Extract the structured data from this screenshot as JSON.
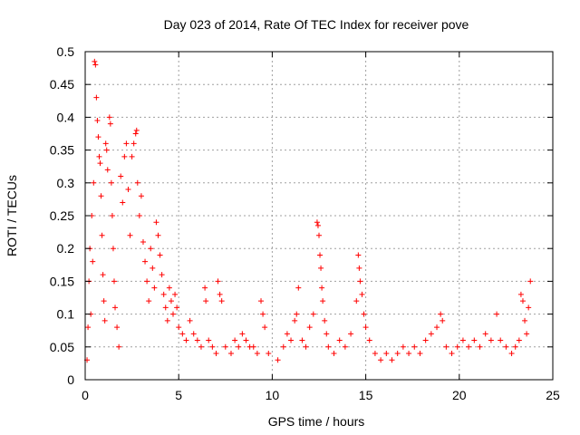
{
  "chart_data": {
    "type": "scatter",
    "title": "Day 023 of 2014, Rate Of TEC Index for receiver pove",
    "xlabel": "GPS time / hours",
    "ylabel": "ROTI / TECUs",
    "xlim": [
      0,
      25
    ],
    "ylim": [
      0,
      0.5
    ],
    "xticks": [
      0,
      5,
      10,
      15,
      20,
      25
    ],
    "yticks": [
      0,
      0.05,
      0.1,
      0.15,
      0.2,
      0.25,
      0.3,
      0.35,
      0.4,
      0.45,
      0.5
    ],
    "xtick_labels": [
      "0",
      "5",
      "10",
      "15",
      "20",
      "25"
    ],
    "ytick_labels": [
      "0",
      "0.05",
      "0.1",
      "0.15",
      "0.2",
      "0.25",
      "0.3",
      "0.35",
      "0.4",
      "0.45",
      "0.5"
    ],
    "grid": true,
    "marker": "+",
    "series": [
      {
        "name": "ROTI",
        "color": "#ff0000",
        "points": [
          [
            0.1,
            0.03
          ],
          [
            0.15,
            0.08
          ],
          [
            0.2,
            0.15
          ],
          [
            0.25,
            0.2
          ],
          [
            0.3,
            0.1
          ],
          [
            0.35,
            0.25
          ],
          [
            0.4,
            0.18
          ],
          [
            0.45,
            0.3
          ],
          [
            0.5,
            0.485
          ],
          [
            0.55,
            0.48
          ],
          [
            0.6,
            0.43
          ],
          [
            0.65,
            0.395
          ],
          [
            0.7,
            0.37
          ],
          [
            0.75,
            0.34
          ],
          [
            0.8,
            0.33
          ],
          [
            0.85,
            0.28
          ],
          [
            0.9,
            0.22
          ],
          [
            0.95,
            0.16
          ],
          [
            1.0,
            0.12
          ],
          [
            1.05,
            0.09
          ],
          [
            1.1,
            0.36
          ],
          [
            1.15,
            0.35
          ],
          [
            1.2,
            0.32
          ],
          [
            1.3,
            0.4
          ],
          [
            1.35,
            0.39
          ],
          [
            1.4,
            0.3
          ],
          [
            1.45,
            0.25
          ],
          [
            1.5,
            0.2
          ],
          [
            1.55,
            0.15
          ],
          [
            1.6,
            0.11
          ],
          [
            1.7,
            0.08
          ],
          [
            1.8,
            0.05
          ],
          [
            1.9,
            0.31
          ],
          [
            2.0,
            0.27
          ],
          [
            2.1,
            0.34
          ],
          [
            2.2,
            0.36
          ],
          [
            2.3,
            0.29
          ],
          [
            2.4,
            0.22
          ],
          [
            2.5,
            0.34
          ],
          [
            2.6,
            0.36
          ],
          [
            2.7,
            0.375
          ],
          [
            2.75,
            0.38
          ],
          [
            2.8,
            0.3
          ],
          [
            2.9,
            0.25
          ],
          [
            3.0,
            0.28
          ],
          [
            3.1,
            0.21
          ],
          [
            3.2,
            0.18
          ],
          [
            3.3,
            0.15
          ],
          [
            3.4,
            0.12
          ],
          [
            3.5,
            0.2
          ],
          [
            3.6,
            0.17
          ],
          [
            3.7,
            0.14
          ],
          [
            3.8,
            0.24
          ],
          [
            3.9,
            0.22
          ],
          [
            4.0,
            0.19
          ],
          [
            4.1,
            0.16
          ],
          [
            4.2,
            0.13
          ],
          [
            4.3,
            0.11
          ],
          [
            4.4,
            0.09
          ],
          [
            4.5,
            0.14
          ],
          [
            4.6,
            0.12
          ],
          [
            4.7,
            0.1
          ],
          [
            4.8,
            0.13
          ],
          [
            4.9,
            0.11
          ],
          [
            5.0,
            0.08
          ],
          [
            5.2,
            0.07
          ],
          [
            5.4,
            0.06
          ],
          [
            5.6,
            0.09
          ],
          [
            5.8,
            0.07
          ],
          [
            6.0,
            0.06
          ],
          [
            6.2,
            0.05
          ],
          [
            6.4,
            0.14
          ],
          [
            6.45,
            0.12
          ],
          [
            6.6,
            0.06
          ],
          [
            6.8,
            0.05
          ],
          [
            7.0,
            0.04
          ],
          [
            7.1,
            0.15
          ],
          [
            7.2,
            0.13
          ],
          [
            7.3,
            0.12
          ],
          [
            7.5,
            0.05
          ],
          [
            7.8,
            0.04
          ],
          [
            8.0,
            0.06
          ],
          [
            8.2,
            0.05
          ],
          [
            8.4,
            0.07
          ],
          [
            8.6,
            0.06
          ],
          [
            8.8,
            0.05
          ],
          [
            9.0,
            0.05
          ],
          [
            9.2,
            0.04
          ],
          [
            9.4,
            0.12
          ],
          [
            9.5,
            0.1
          ],
          [
            9.6,
            0.08
          ],
          [
            9.8,
            0.04
          ],
          [
            10.3,
            0.03
          ],
          [
            10.6,
            0.05
          ],
          [
            10.8,
            0.07
          ],
          [
            11.0,
            0.06
          ],
          [
            11.2,
            0.09
          ],
          [
            11.3,
            0.1
          ],
          [
            11.4,
            0.14
          ],
          [
            11.6,
            0.06
          ],
          [
            11.8,
            0.05
          ],
          [
            12.0,
            0.08
          ],
          [
            12.2,
            0.1
          ],
          [
            12.4,
            0.24
          ],
          [
            12.45,
            0.235
          ],
          [
            12.5,
            0.22
          ],
          [
            12.55,
            0.19
          ],
          [
            12.6,
            0.17
          ],
          [
            12.65,
            0.14
          ],
          [
            12.7,
            0.12
          ],
          [
            12.8,
            0.09
          ],
          [
            12.9,
            0.07
          ],
          [
            13.0,
            0.05
          ],
          [
            13.3,
            0.04
          ],
          [
            13.6,
            0.06
          ],
          [
            13.9,
            0.05
          ],
          [
            14.2,
            0.07
          ],
          [
            14.5,
            0.12
          ],
          [
            14.6,
            0.19
          ],
          [
            14.65,
            0.17
          ],
          [
            14.7,
            0.15
          ],
          [
            14.8,
            0.13
          ],
          [
            14.9,
            0.1
          ],
          [
            15.0,
            0.08
          ],
          [
            15.2,
            0.06
          ],
          [
            15.5,
            0.04
          ],
          [
            15.8,
            0.03
          ],
          [
            16.1,
            0.04
          ],
          [
            16.4,
            0.03
          ],
          [
            16.7,
            0.04
          ],
          [
            17.0,
            0.05
          ],
          [
            17.3,
            0.04
          ],
          [
            17.6,
            0.05
          ],
          [
            17.9,
            0.04
          ],
          [
            18.2,
            0.06
          ],
          [
            18.5,
            0.07
          ],
          [
            18.8,
            0.08
          ],
          [
            19.0,
            0.1
          ],
          [
            19.1,
            0.09
          ],
          [
            19.3,
            0.05
          ],
          [
            19.6,
            0.04
          ],
          [
            19.9,
            0.05
          ],
          [
            20.2,
            0.06
          ],
          [
            20.5,
            0.05
          ],
          [
            20.8,
            0.06
          ],
          [
            21.1,
            0.05
          ],
          [
            21.4,
            0.07
          ],
          [
            21.7,
            0.06
          ],
          [
            22.0,
            0.1
          ],
          [
            22.2,
            0.06
          ],
          [
            22.5,
            0.05
          ],
          [
            22.8,
            0.04
          ],
          [
            23.0,
            0.05
          ],
          [
            23.2,
            0.06
          ],
          [
            23.3,
            0.13
          ],
          [
            23.4,
            0.12
          ],
          [
            23.5,
            0.09
          ],
          [
            23.6,
            0.07
          ],
          [
            23.7,
            0.11
          ],
          [
            23.8,
            0.15
          ]
        ]
      }
    ]
  }
}
